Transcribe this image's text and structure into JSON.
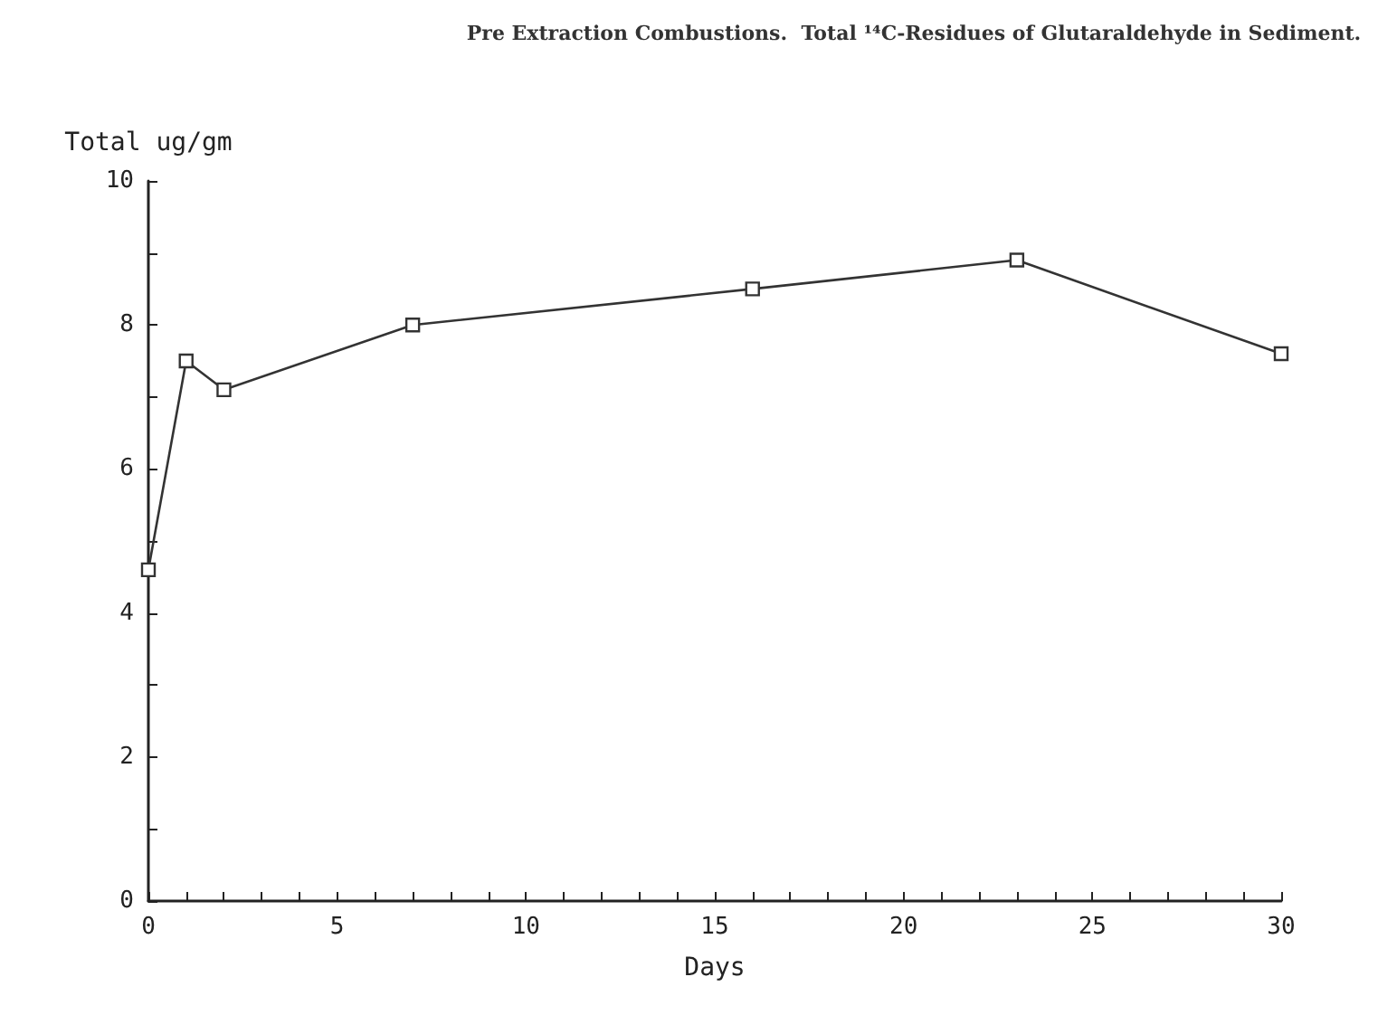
{
  "chart_data": {
    "type": "line",
    "title": "Pre Extraction Combustions.  Total ¹⁴C-Residues of Glutaraldehyde in Sediment.",
    "xlabel": "Days",
    "ylabel": "Total ug/gm",
    "x": [
      0,
      1,
      2,
      7,
      16,
      23,
      30
    ],
    "series": [
      {
        "color": "#333333",
        "values": [
          4.6,
          7.5,
          7.1,
          8.0,
          8.5,
          8.9,
          7.6
        ]
      }
    ],
    "xlim": [
      0,
      30
    ],
    "ylim": [
      0,
      10
    ],
    "xticks": [
      0,
      {
        "value": 1,
        "label": null
      },
      {
        "value": 2,
        "label": null
      },
      {
        "value": 3,
        "label": null
      },
      {
        "value": 4,
        "label": null
      },
      5,
      {
        "value": 6,
        "label": null
      },
      {
        "value": 7,
        "label": null
      },
      {
        "value": 8,
        "label": null
      },
      {
        "value": 9,
        "label": null
      },
      10,
      {
        "value": 11,
        "label": null
      },
      {
        "value": 12,
        "label": null
      },
      {
        "value": 13,
        "label": null
      },
      {
        "value": 14,
        "label": null
      },
      15,
      {
        "value": 16,
        "label": null
      },
      {
        "value": 17,
        "label": null
      },
      {
        "value": 18,
        "label": null
      },
      {
        "value": 19,
        "label": null
      },
      20,
      {
        "value": 21,
        "label": null
      },
      {
        "value": 22,
        "label": null
      },
      {
        "value": 23,
        "label": null
      },
      {
        "value": 24,
        "label": null
      },
      25,
      {
        "value": 26,
        "label": null
      },
      {
        "value": 27,
        "label": null
      },
      {
        "value": 28,
        "label": null
      },
      {
        "value": 29,
        "label": null
      },
      30
    ],
    "yticks": [
      0,
      {
        "value": 1,
        "label": null
      },
      2,
      {
        "value": 3,
        "label": null
      },
      4,
      {
        "value": 5,
        "label": null
      },
      6,
      {
        "value": 7,
        "label": null
      },
      8,
      {
        "value": 9,
        "label": null
      },
      10
    ],
    "grid": false,
    "marker": "square",
    "line_style": "solid"
  }
}
